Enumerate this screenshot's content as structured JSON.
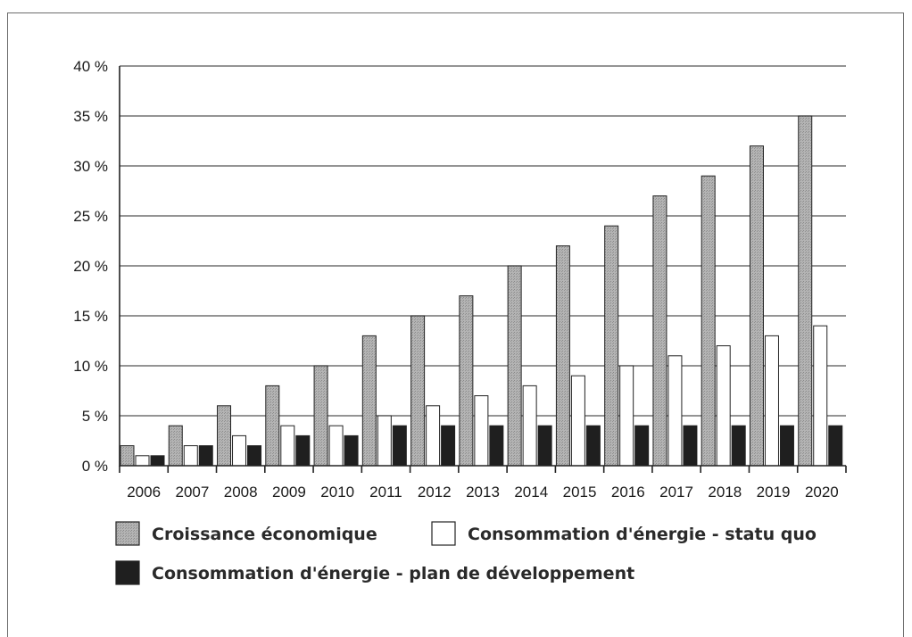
{
  "chart_data": {
    "type": "bar",
    "categories": [
      "2006",
      "2007",
      "2008",
      "2009",
      "2010",
      "2011",
      "2012",
      "2013",
      "2014",
      "2015",
      "2016",
      "2017",
      "2018",
      "2019",
      "2020"
    ],
    "series": [
      {
        "name": "Croissance économique",
        "color": "#a8a8a8",
        "pattern": "dotted-gray",
        "values": [
          2,
          4,
          6,
          8,
          10,
          13,
          15,
          17,
          20,
          22,
          24,
          27,
          29,
          32,
          35
        ]
      },
      {
        "name": "Consommation d'énergie - statu quo",
        "color": "#ffffff",
        "values": [
          1,
          2,
          3,
          4,
          4,
          5,
          6,
          7,
          8,
          9,
          10,
          11,
          12,
          13,
          14
        ]
      },
      {
        "name": "Consommation d'énergie - plan de développement",
        "color": "#1e1e1e",
        "values": [
          1,
          2,
          2,
          3,
          3,
          4,
          4,
          4,
          4,
          4,
          4,
          4,
          4,
          4,
          4
        ]
      }
    ],
    "y_ticks": [
      "0 %",
      "5 %",
      "10 %",
      "15 %",
      "20 %",
      "25 %",
      "30 %",
      "35 %",
      "40 %"
    ],
    "y_tick_values": [
      0,
      5,
      10,
      15,
      20,
      25,
      30,
      35,
      40
    ],
    "ylim": [
      0,
      40
    ],
    "grid": true,
    "legend_position": "bottom"
  }
}
